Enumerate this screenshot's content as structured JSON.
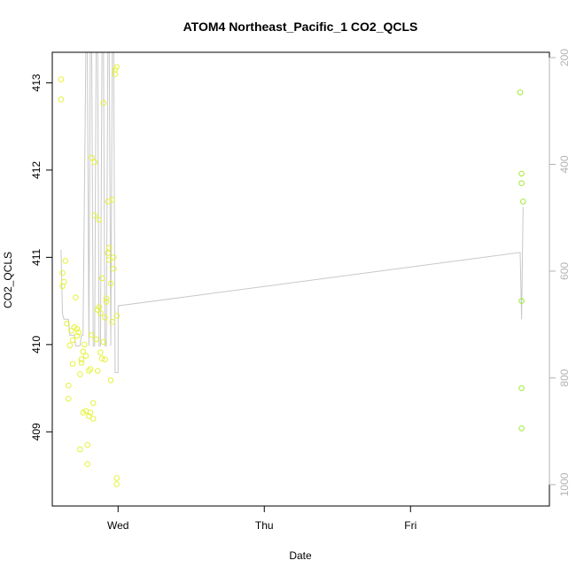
{
  "chart_data": {
    "type": "scatter",
    "title": "ATOM4 Northeast_Pacific_1 CO2_QCLS",
    "xlabel": "Date",
    "ylabel": "CO2_QCLS",
    "x_ticks": [
      {
        "label": "Wed",
        "value": 0.0
      },
      {
        "label": "Thu",
        "value": 1.0
      },
      {
        "label": "Fri",
        "value": 2.0
      }
    ],
    "xlim": [
      -0.45,
      2.95
    ],
    "ylim": [
      408.15,
      413.35
    ],
    "y_ticks": [
      409,
      410,
      411,
      412,
      413
    ],
    "y2lim": [
      1040,
      190
    ],
    "y2_ticks": [
      200,
      400,
      600,
      800,
      1000
    ],
    "grid": false,
    "colors": {
      "points_early": "#e6f23a",
      "points_late": "#a2ea3a",
      "altitude_line": "#c8c8c8",
      "axis": "#000000",
      "right_axis": "#b3b3b3"
    },
    "series": [
      {
        "role": "points",
        "x": [
          -0.39,
          -0.39,
          -0.38,
          -0.37,
          -0.38,
          -0.36,
          -0.35,
          -0.34,
          -0.34,
          -0.33,
          -0.32,
          -0.31,
          -0.31,
          -0.3,
          -0.29,
          -0.28,
          -0.28,
          -0.27,
          -0.26,
          -0.26,
          -0.25,
          -0.25,
          -0.24,
          -0.24,
          -0.23,
          -0.22,
          -0.22,
          -0.21,
          -0.21,
          -0.2,
          -0.2,
          -0.19,
          -0.19,
          -0.18,
          -0.18,
          -0.17,
          -0.17,
          -0.16,
          -0.16,
          -0.15,
          -0.14,
          -0.14,
          -0.13,
          -0.13,
          -0.12,
          -0.12,
          -0.11,
          -0.11,
          -0.1,
          -0.1,
          -0.09,
          -0.09,
          -0.08,
          -0.08,
          -0.07,
          -0.07,
          -0.06,
          -0.06,
          -0.05,
          -0.05,
          -0.04,
          -0.04,
          -0.03,
          -0.03,
          -0.02,
          -0.02,
          -0.01,
          -0.01,
          -0.01,
          -0.01,
          2.75,
          2.76,
          2.76,
          2.77,
          2.76,
          2.76,
          2.76
        ],
        "y": [
          413.04,
          412.81,
          410.67,
          410.72,
          410.82,
          410.96,
          410.24,
          409.38,
          409.53,
          409.99,
          410.16,
          410.05,
          409.78,
          410.2,
          410.54,
          410.1,
          410.18,
          410.14,
          409.66,
          408.8,
          409.79,
          409.83,
          409.22,
          409.92,
          410.0,
          409.87,
          409.24,
          408.63,
          408.85,
          409.7,
          409.18,
          409.22,
          409.72,
          410.11,
          412.14,
          409.15,
          409.33,
          412.09,
          411.48,
          410.06,
          410.4,
          409.7,
          411.43,
          410.43,
          409.91,
          410.36,
          409.84,
          410.76,
          412.77,
          410.03,
          409.83,
          410.31,
          410.53,
          410.49,
          411.64,
          411.05,
          410.97,
          411.11,
          410.7,
          409.59,
          410.26,
          411.66,
          410.87,
          411.0,
          413.1,
          413.15,
          413.18,
          410.33,
          408.47,
          408.4,
          412.89,
          411.85,
          411.96,
          411.64,
          410.5,
          409.5,
          409.04
        ]
      },
      {
        "role": "altitude",
        "axis": "right",
        "x": [
          -0.39,
          -0.38,
          -0.37,
          -0.34,
          -0.33,
          -0.3,
          -0.29,
          -0.26,
          -0.25,
          -0.24,
          -0.22,
          -0.21,
          -0.2,
          -0.19,
          -0.18,
          -0.17,
          -0.16,
          -0.15,
          -0.14,
          -0.13,
          -0.12,
          -0.11,
          -0.1,
          -0.09,
          -0.08,
          -0.07,
          -0.06,
          -0.05,
          -0.04,
          -0.03,
          -0.02,
          -0.01,
          0.0,
          0.0,
          2.75,
          2.76,
          2.77
        ],
        "y": [
          560,
          680,
          690,
          690,
          720,
          720,
          740,
          740,
          720,
          720,
          190,
          190,
          740,
          190,
          190,
          740,
          740,
          190,
          190,
          740,
          740,
          190,
          190,
          740,
          740,
          190,
          190,
          740,
          190,
          190,
          790,
          790,
          790,
          665,
          565,
          690,
          480
        ]
      }
    ]
  }
}
